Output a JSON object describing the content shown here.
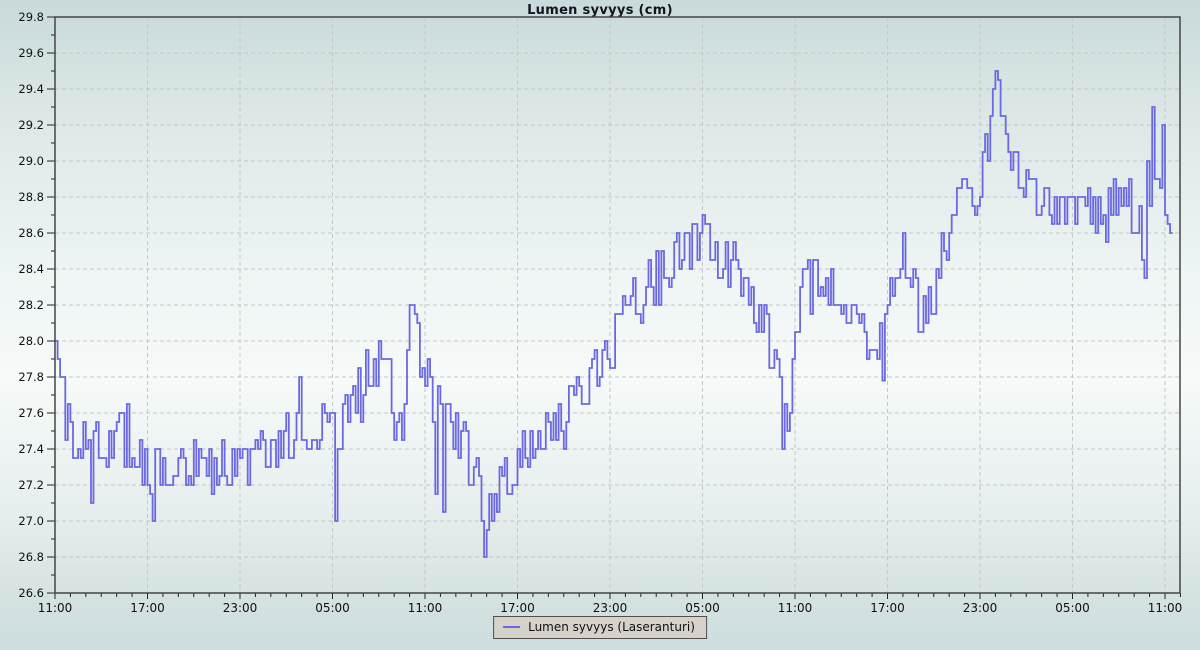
{
  "page": {
    "background_top": "#c9dada",
    "background_middle": "#f6faf9",
    "background_bottom": "#cddede"
  },
  "chart_data": {
    "type": "line",
    "title": "Lumen syvyys (cm)",
    "xlabel": "",
    "ylabel": "",
    "unit": "cm",
    "ylim": [
      26.6,
      29.8
    ],
    "y_tick_step": 0.2,
    "y_minor_step": 0.1,
    "x_total_hours": 73,
    "x_tick_interval_hours": 6,
    "x_minor_interval_hours": 1,
    "x_tick_labels": [
      "11:00",
      "17:00",
      "23:00",
      "05:00",
      "11:00",
      "17:00",
      "23:00",
      "05:00",
      "11:00",
      "17:00",
      "23:00",
      "05:00",
      "11:00"
    ],
    "grid": true,
    "grid_style": "dashed",
    "legend_position": "bottom-center",
    "line_color": "#6b69e1",
    "grid_color": "#c4c8c6",
    "axis_color": "#454545",
    "tick_label_color": "#101010",
    "series": [
      {
        "name": "Lumen syvyys (Laseranturi)",
        "sample_minutes": 10,
        "quantize_cm": 0.05,
        "noise_seed": 1337,
        "t_start_hours": 0,
        "t_end_hours": 72.6,
        "start_value": 28.0,
        "min_value": 26.8,
        "max_value": 29.5,
        "envelope_keypoints_t_mid_amp": [
          [
            0,
            28.0,
            0.02
          ],
          [
            0.3,
            27.7,
            0.18
          ],
          [
            0.9,
            27.5,
            0.2
          ],
          [
            1.6,
            27.45,
            0.16
          ],
          [
            2.1,
            27.55,
            0.2
          ],
          [
            2.6,
            27.38,
            0.15
          ],
          [
            3.4,
            27.4,
            0.13
          ],
          [
            4.2,
            27.45,
            0.18
          ],
          [
            4.9,
            27.5,
            0.2
          ],
          [
            5.5,
            27.35,
            0.15
          ],
          [
            6.3,
            27.28,
            0.16
          ],
          [
            7.2,
            27.32,
            0.12
          ],
          [
            8.2,
            27.3,
            0.1
          ],
          [
            9.2,
            27.33,
            0.12
          ],
          [
            10.2,
            27.3,
            0.12
          ],
          [
            11.2,
            27.32,
            0.12
          ],
          [
            12.2,
            27.3,
            0.13
          ],
          [
            13.0,
            27.35,
            0.14
          ],
          [
            14.0,
            27.38,
            0.13
          ],
          [
            15.0,
            27.45,
            0.13
          ],
          [
            15.8,
            27.55,
            0.15
          ],
          [
            16.6,
            27.5,
            0.13
          ],
          [
            17.4,
            27.52,
            0.13
          ],
          [
            18.2,
            27.5,
            0.14
          ],
          [
            19.0,
            27.6,
            0.14
          ],
          [
            19.8,
            27.72,
            0.15
          ],
          [
            20.5,
            27.85,
            0.14
          ],
          [
            21.1,
            27.88,
            0.13
          ],
          [
            21.7,
            27.78,
            0.15
          ],
          [
            22.2,
            27.45,
            0.18
          ],
          [
            22.8,
            27.8,
            0.2
          ],
          [
            23.3,
            28.0,
            0.17
          ],
          [
            23.9,
            27.92,
            0.15
          ],
          [
            24.5,
            27.7,
            0.17
          ],
          [
            25.1,
            27.57,
            0.17
          ],
          [
            25.7,
            27.5,
            0.15
          ],
          [
            26.3,
            27.45,
            0.15
          ],
          [
            27.0,
            27.3,
            0.15
          ],
          [
            27.6,
            27.12,
            0.15
          ],
          [
            28.2,
            27.05,
            0.13
          ],
          [
            28.8,
            27.15,
            0.13
          ],
          [
            29.5,
            27.27,
            0.13
          ],
          [
            30.3,
            27.4,
            0.13
          ],
          [
            31.1,
            27.45,
            0.12
          ],
          [
            31.9,
            27.5,
            0.13
          ],
          [
            33.0,
            27.6,
            0.12
          ],
          [
            34.0,
            27.68,
            0.13
          ],
          [
            35.0,
            27.82,
            0.14
          ],
          [
            36.0,
            27.95,
            0.15
          ],
          [
            36.8,
            28.08,
            0.15
          ],
          [
            37.6,
            28.22,
            0.15
          ],
          [
            38.5,
            28.35,
            0.14
          ],
          [
            39.5,
            28.42,
            0.13
          ],
          [
            40.5,
            28.5,
            0.12
          ],
          [
            41.5,
            28.55,
            0.12
          ],
          [
            42.5,
            28.52,
            0.12
          ],
          [
            43.3,
            28.45,
            0.13
          ],
          [
            44.2,
            28.35,
            0.13
          ],
          [
            45.0,
            28.25,
            0.13
          ],
          [
            45.7,
            28.12,
            0.13
          ],
          [
            46.4,
            27.98,
            0.14
          ],
          [
            46.9,
            27.78,
            0.15
          ],
          [
            47.3,
            27.55,
            0.13
          ],
          [
            47.7,
            27.65,
            0.15
          ],
          [
            48.1,
            28.05,
            0.15
          ],
          [
            48.5,
            28.3,
            0.13
          ],
          [
            49.2,
            28.37,
            0.13
          ],
          [
            50.0,
            28.32,
            0.12
          ],
          [
            50.9,
            28.28,
            0.12
          ],
          [
            51.7,
            28.12,
            0.13
          ],
          [
            52.5,
            28.02,
            0.13
          ],
          [
            53.3,
            28.0,
            0.14
          ],
          [
            54.1,
            28.3,
            0.13
          ],
          [
            54.8,
            28.48,
            0.12
          ],
          [
            55.4,
            28.42,
            0.13
          ],
          [
            56.2,
            28.15,
            0.18
          ],
          [
            56.8,
            28.2,
            0.15
          ],
          [
            57.4,
            28.45,
            0.14
          ],
          [
            58.0,
            28.7,
            0.14
          ],
          [
            58.7,
            28.8,
            0.13
          ],
          [
            59.4,
            28.8,
            0.13
          ],
          [
            60.0,
            28.85,
            0.15
          ],
          [
            60.5,
            29.1,
            0.15
          ],
          [
            60.9,
            29.35,
            0.1
          ],
          [
            61.2,
            29.42,
            0.08
          ],
          [
            61.6,
            29.22,
            0.1
          ],
          [
            62.1,
            29.0,
            0.1
          ],
          [
            62.7,
            28.9,
            0.1
          ],
          [
            63.5,
            28.8,
            0.1
          ],
          [
            64.5,
            28.75,
            0.1
          ],
          [
            65.5,
            28.75,
            0.1
          ],
          [
            66.3,
            28.7,
            0.11
          ],
          [
            67.1,
            28.68,
            0.13
          ],
          [
            68.0,
            28.75,
            0.13
          ],
          [
            68.8,
            28.8,
            0.14
          ],
          [
            69.6,
            28.8,
            0.15
          ],
          [
            70.3,
            28.6,
            0.15
          ],
          [
            70.9,
            28.85,
            0.2
          ],
          [
            71.4,
            29.0,
            0.18
          ],
          [
            71.9,
            28.85,
            0.16
          ],
          [
            72.3,
            28.68,
            0.12
          ],
          [
            72.6,
            28.62,
            0.08
          ]
        ],
        "notable_points_t_value": [
          [
            0,
            28.0
          ],
          [
            2.4,
            27.1
          ],
          [
            6.4,
            27.0
          ],
          [
            15.8,
            27.8
          ],
          [
            18.2,
            27.0
          ],
          [
            21.0,
            28.0
          ],
          [
            23.2,
            28.2
          ],
          [
            23.35,
            28.15
          ],
          [
            24.6,
            27.15
          ],
          [
            25.1,
            27.05
          ],
          [
            27.9,
            26.8
          ],
          [
            42.0,
            28.7
          ],
          [
            47.1,
            27.4
          ],
          [
            53.6,
            27.78
          ],
          [
            55.0,
            28.6
          ],
          [
            61.0,
            29.5
          ],
          [
            61.15,
            29.45
          ],
          [
            70.6,
            28.35
          ],
          [
            71.1,
            29.3
          ],
          [
            71.8,
            29.2
          ],
          [
            72.6,
            28.6
          ]
        ]
      }
    ]
  },
  "legend": {
    "items": [
      {
        "label": "Lumen syvyys (Laseranturi)",
        "color": "#6b69e1"
      }
    ]
  }
}
